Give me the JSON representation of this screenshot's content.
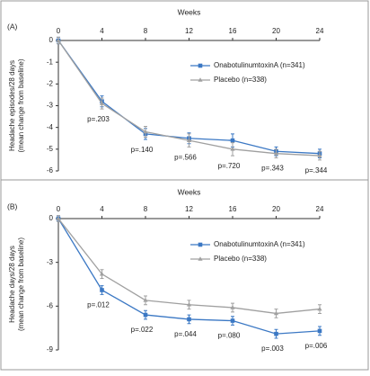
{
  "chart_data": [
    {
      "type": "line",
      "panel_label": "(A)",
      "x_label": "Weeks",
      "y_label": [
        "Headache episodes/28 days",
        "(mean change from baseline)"
      ],
      "x": [
        0,
        4,
        8,
        12,
        16,
        20,
        24
      ],
      "xlim": [
        0,
        24
      ],
      "xticks": [
        0,
        4,
        8,
        12,
        16,
        20,
        24
      ],
      "ylim": [
        -6,
        0
      ],
      "yticks": [
        0,
        -1,
        -2,
        -3,
        -4,
        -5,
        -6
      ],
      "series": [
        {
          "name": "OnabotulinumtoxinA (n=341)",
          "color": "#3b78c4",
          "marker": "square",
          "values": [
            0,
            -2.8,
            -4.3,
            -4.5,
            -4.6,
            -5.1,
            -5.2
          ],
          "errors": [
            0.15,
            0.25,
            0.25,
            0.25,
            0.3,
            0.2,
            0.2
          ]
        },
        {
          "name": "Placebo (n=338)",
          "color": "#a0a0a0",
          "marker": "triangle",
          "values": [
            0,
            -2.9,
            -4.2,
            -4.6,
            -5.0,
            -5.2,
            -5.3
          ],
          "errors": [
            0.15,
            0.25,
            0.25,
            0.3,
            0.3,
            0.2,
            0.2
          ]
        }
      ],
      "p_values": [
        null,
        "p=.203",
        "p=.140",
        "p=.566",
        "p=.720",
        "p=.343",
        "p=.344"
      ]
    },
    {
      "type": "line",
      "panel_label": "(B)",
      "x_label": "Weeks",
      "y_label": [
        "Headache days/28 days",
        "(mean change from baseline)"
      ],
      "x": [
        0,
        4,
        8,
        12,
        16,
        20,
        24
      ],
      "xlim": [
        0,
        24
      ],
      "xticks": [
        0,
        4,
        8,
        12,
        16,
        20,
        24
      ],
      "ylim": [
        -9,
        0
      ],
      "yticks": [
        0,
        -3,
        -6,
        -9
      ],
      "series": [
        {
          "name": "OnabotulinumtoxinA (n=341)",
          "color": "#3b78c4",
          "marker": "square",
          "values": [
            0,
            -4.9,
            -6.6,
            -6.9,
            -7.0,
            -7.9,
            -7.7
          ],
          "errors": [
            0.2,
            0.3,
            0.3,
            0.3,
            0.3,
            0.3,
            0.3
          ]
        },
        {
          "name": "Placebo (n=338)",
          "color": "#a0a0a0",
          "marker": "triangle",
          "values": [
            0,
            -3.8,
            -5.6,
            -5.9,
            -6.1,
            -6.5,
            -6.2
          ],
          "errors": [
            0.2,
            0.3,
            0.3,
            0.3,
            0.3,
            0.3,
            0.3
          ]
        }
      ],
      "p_values": [
        null,
        "p=.012",
        "p=.022",
        "p=.044",
        "p=.080",
        "p=.003",
        "p=.006"
      ]
    }
  ]
}
